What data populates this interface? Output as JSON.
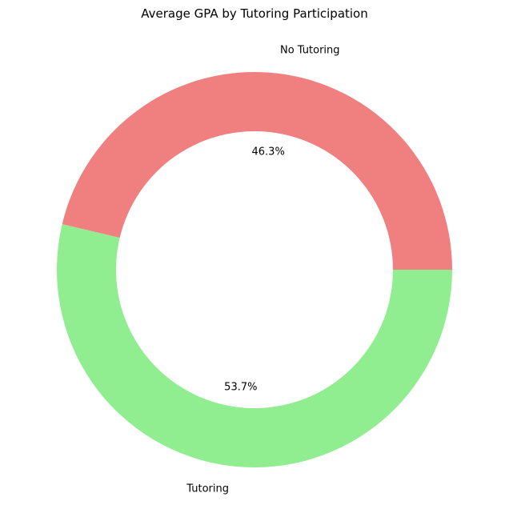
{
  "chart_data": {
    "type": "pie",
    "style": "donut",
    "title": "Average GPA by Tutoring Participation",
    "labels": [
      "No Tutoring",
      "Tutoring"
    ],
    "values": [
      46.3,
      53.7
    ],
    "percent_labels": [
      "46.3%",
      "53.7%"
    ],
    "colors": [
      "#f08080",
      "#90ee90"
    ],
    "start_angle_deg": 0,
    "direction": "counterclockwise",
    "legend": "none"
  }
}
